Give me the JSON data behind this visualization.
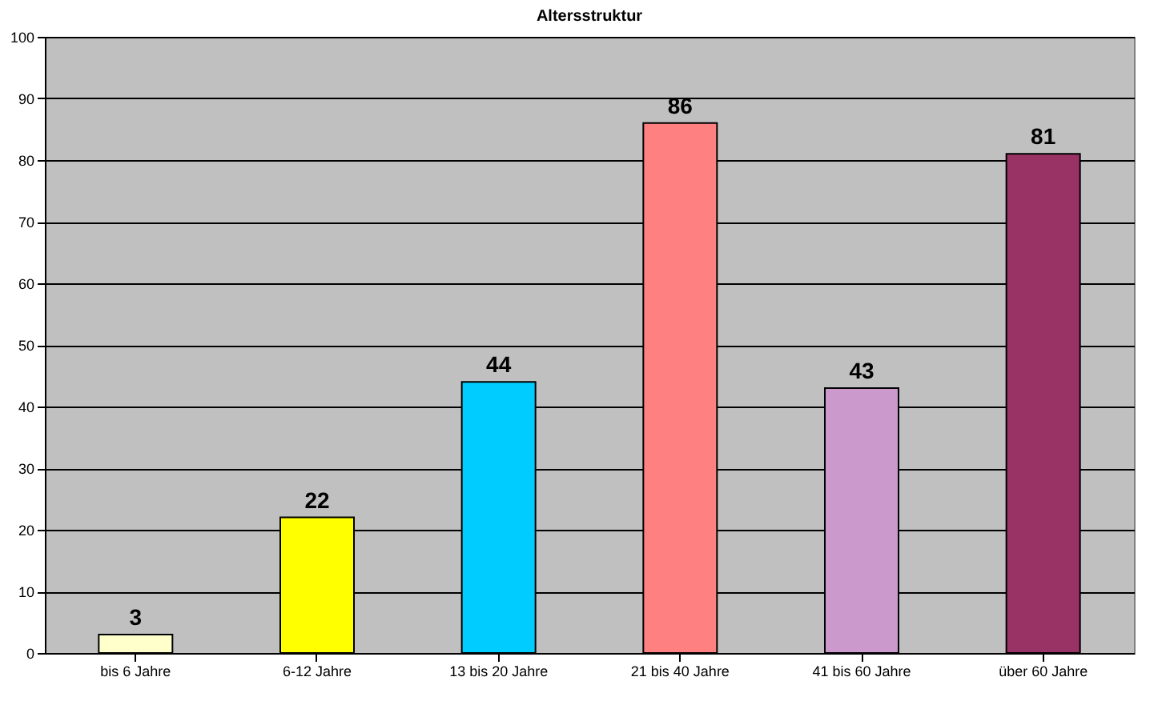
{
  "chart_data": {
    "type": "bar",
    "title": "Altersstruktur",
    "categories": [
      "bis 6 Jahre",
      "6-12 Jahre",
      "13 bis 20 Jahre",
      "21 bis 40 Jahre",
      "41 bis 60 Jahre",
      "über 60 Jahre"
    ],
    "values": [
      3,
      22,
      44,
      86,
      43,
      81
    ],
    "colors": [
      "#ffffcc",
      "#ffff00",
      "#00ccff",
      "#ff8080",
      "#cc99cc",
      "#993366"
    ],
    "ylim": [
      0,
      100
    ],
    "yticks": [
      0,
      10,
      20,
      30,
      40,
      50,
      60,
      70,
      80,
      90,
      100
    ],
    "grid": "y",
    "data_labels": true
  }
}
